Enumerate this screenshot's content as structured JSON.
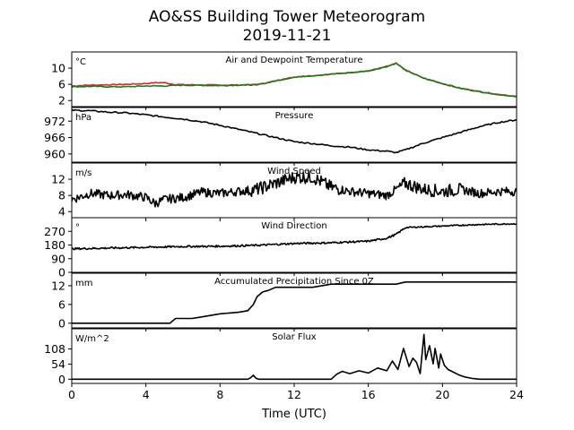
{
  "title_line1": "AO&SS Building Tower Meteorogram",
  "title_line2": "2019-11-21",
  "x_axis": {
    "label": "Time (UTC)",
    "range": [
      0,
      24
    ],
    "ticks": [
      0,
      4,
      8,
      12,
      16,
      20,
      24
    ]
  },
  "chart_data": [
    {
      "type": "line",
      "title": "Air and Dewpoint Temperature",
      "unit_label": "°C",
      "ylim": [
        0.5,
        14
      ],
      "yticks": [
        2,
        6,
        10
      ],
      "series": [
        {
          "color": "#d62728",
          "x": [
            0,
            1,
            2,
            3,
            4,
            4.5,
            5,
            5.5,
            6,
            8,
            10,
            12,
            14,
            16,
            17,
            17.5,
            18,
            19,
            20,
            21,
            22,
            23,
            24
          ],
          "y": [
            5.6,
            5.8,
            5.9,
            6.0,
            6.2,
            6.4,
            6.4,
            6.0,
            5.9,
            5.8,
            5.9,
            7.8,
            8.5,
            9.3,
            10.4,
            11.2,
            9.5,
            7.5,
            6.2,
            5.0,
            4.2,
            3.5,
            3.0
          ]
        },
        {
          "color": "#1f7a1f",
          "x": [
            0,
            1,
            2,
            3,
            4,
            4.5,
            5,
            5.5,
            6,
            8,
            10,
            12,
            14,
            16,
            17,
            17.5,
            18,
            19,
            20,
            21,
            22,
            23,
            24
          ],
          "y": [
            5.4,
            5.5,
            5.4,
            5.4,
            5.6,
            5.6,
            5.6,
            5.7,
            5.8,
            5.7,
            5.9,
            7.8,
            8.5,
            9.3,
            10.4,
            11.2,
            9.5,
            7.5,
            6.2,
            5.0,
            4.2,
            3.5,
            3.0
          ]
        }
      ]
    },
    {
      "type": "line",
      "title": "Pressure",
      "unit_label": "hPa",
      "ylim": [
        957,
        977
      ],
      "yticks": [
        960,
        966,
        972
      ],
      "series": [
        {
          "color": "#000000",
          "x": [
            0,
            1,
            2,
            3,
            4,
            5,
            6,
            7,
            8,
            9,
            10,
            11,
            12,
            13,
            14,
            15,
            16,
            17,
            17.5,
            18,
            19,
            20,
            21,
            22,
            23,
            24
          ],
          "y": [
            976,
            975.8,
            975.3,
            975,
            974.3,
            973.5,
            972.8,
            971.8,
            970.5,
            969,
            967.5,
            966,
            964.5,
            963.8,
            963,
            962.5,
            961.5,
            961,
            960.5,
            961.5,
            964,
            966,
            968,
            970,
            971.5,
            972.5
          ]
        }
      ]
    },
    {
      "type": "line",
      "title": "Wind Speed",
      "unit_label": "m/s",
      "ylim": [
        2.5,
        16
      ],
      "yticks": [
        4,
        8,
        12
      ],
      "series": [
        {
          "color": "#000000",
          "x": [
            0,
            1,
            2,
            3,
            4,
            4.5,
            5,
            6,
            7,
            8,
            9,
            10,
            11,
            12,
            13,
            14,
            15,
            16,
            17,
            18,
            19,
            20,
            21,
            22,
            23,
            24
          ],
          "y": [
            7,
            8.5,
            8,
            8.2,
            7.5,
            6,
            7,
            7.5,
            8.8,
            8.5,
            9,
            9.5,
            11,
            12.5,
            12.5,
            10,
            9,
            8.5,
            8,
            11,
            9.5,
            9,
            9.5,
            8.5,
            9,
            9
          ]
        }
      ]
    },
    {
      "type": "line",
      "title": "Wind Direction",
      "unit_label": "°",
      "ylim": [
        0,
        360
      ],
      "yticks": [
        0,
        90,
        180,
        270
      ],
      "series": [
        {
          "color": "#000000",
          "x": [
            0,
            2,
            4,
            6,
            8,
            10,
            12,
            14,
            16,
            17,
            17.5,
            18,
            19,
            20,
            22,
            24
          ],
          "y": [
            155,
            160,
            165,
            170,
            172,
            178,
            190,
            195,
            205,
            225,
            250,
            295,
            300,
            305,
            315,
            320
          ]
        }
      ]
    },
    {
      "type": "line",
      "title": "Accumulated Precipitation Since 0Z",
      "unit_label": "mm",
      "ylim": [
        -1.5,
        16
      ],
      "yticks": [
        0,
        6,
        12
      ],
      "series": [
        {
          "color": "#000000",
          "x": [
            0,
            5.3,
            5.6,
            6.5,
            7,
            7.5,
            8,
            9,
            9.5,
            9.8,
            10,
            10.3,
            10.6,
            11,
            13,
            13.5,
            14,
            17.5,
            18,
            20,
            24
          ],
          "y": [
            0,
            0,
            1.5,
            1.5,
            2.0,
            2.5,
            3,
            3.5,
            4,
            6,
            8.5,
            10,
            10.5,
            11.5,
            11.5,
            12,
            12.5,
            12.5,
            13.2,
            13.2,
            13.2
          ]
        }
      ]
    },
    {
      "type": "line",
      "title": "Solar Flux",
      "unit_label": "W/m^2",
      "ylim": [
        -15,
        180
      ],
      "yticks": [
        0,
        54,
        108
      ],
      "series": [
        {
          "color": "#000000",
          "x": [
            0,
            9.5,
            9.65,
            9.8,
            9.95,
            10.1,
            14,
            14.3,
            14.6,
            15,
            15.5,
            16,
            16.5,
            17,
            17.3,
            17.6,
            17.9,
            18.2,
            18.4,
            18.6,
            18.8,
            19,
            19.1,
            19.3,
            19.5,
            19.6,
            19.8,
            19.9,
            20.1,
            20.3,
            20.6,
            20.9,
            21.2,
            21.6,
            22,
            24
          ],
          "y": [
            0,
            0,
            5,
            14,
            3,
            0,
            0,
            18,
            28,
            20,
            30,
            22,
            40,
            30,
            65,
            35,
            110,
            45,
            75,
            60,
            20,
            160,
            70,
            120,
            55,
            110,
            40,
            90,
            50,
            35,
            25,
            15,
            8,
            3,
            0,
            0
          ]
        }
      ]
    }
  ]
}
